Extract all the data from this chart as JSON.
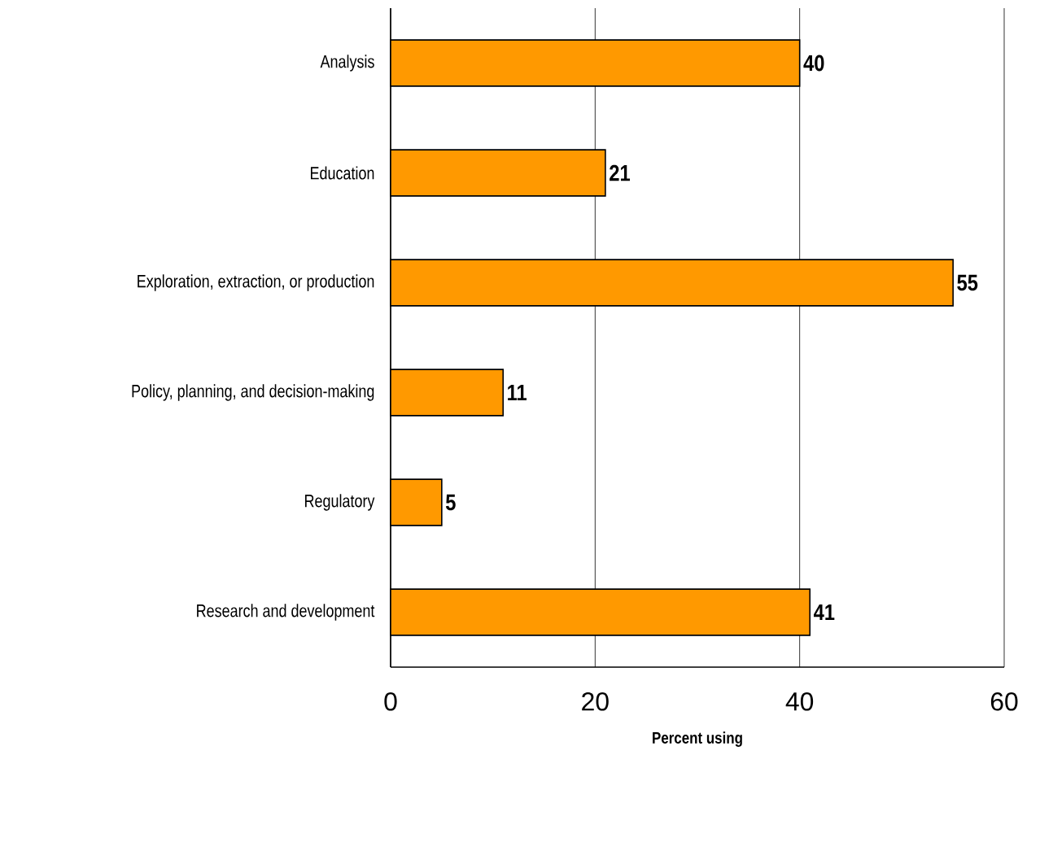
{
  "chart_data": {
    "type": "bar",
    "orientation": "horizontal",
    "xlabel": "Percent using",
    "categories": [
      "Analysis",
      "Education",
      "Exploration, extraction, or production",
      "Policy, planning, and decision-making",
      "Regulatory",
      "Research and development"
    ],
    "values": [
      40,
      21,
      55,
      11,
      5,
      41
    ],
    "color": "#ff9900",
    "xlim": [
      0,
      60
    ],
    "xticks": [
      0,
      20,
      40,
      60
    ],
    "grid": "x",
    "data_labels": true
  }
}
